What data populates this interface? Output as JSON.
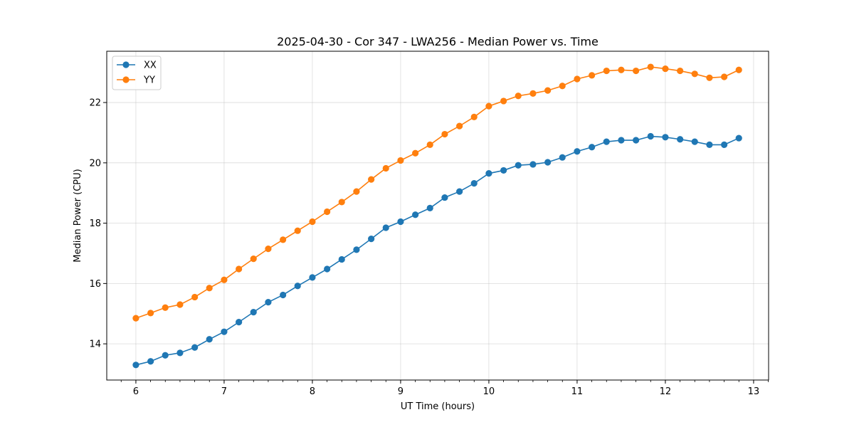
{
  "chart_data": {
    "type": "line",
    "title": "2025-04-30 - Cor 347 - LWA256 - Median Power vs. Time",
    "xlabel": "UT Time (hours)",
    "ylabel": "Median Power (CPU)",
    "xlim": [
      5.67,
      13.17
    ],
    "ylim": [
      12.8,
      23.7
    ],
    "xticks": [
      6,
      7,
      8,
      9,
      10,
      11,
      12,
      13
    ],
    "yticks": [
      14,
      16,
      18,
      20,
      22
    ],
    "grid": true,
    "legend_position": "top-left",
    "x": [
      6.0,
      6.167,
      6.333,
      6.5,
      6.667,
      6.833,
      7.0,
      7.167,
      7.333,
      7.5,
      7.667,
      7.833,
      8.0,
      8.167,
      8.333,
      8.5,
      8.667,
      8.833,
      9.0,
      9.167,
      9.333,
      9.5,
      9.667,
      9.833,
      10.0,
      10.167,
      10.333,
      10.5,
      10.667,
      10.833,
      11.0,
      11.167,
      11.333,
      11.5,
      11.667,
      11.833,
      12.0,
      12.167,
      12.333,
      12.5,
      12.667,
      12.833
    ],
    "series": [
      {
        "name": "XX",
        "color": "#1f77b4",
        "values": [
          13.3,
          13.42,
          13.62,
          13.7,
          13.88,
          14.15,
          14.4,
          14.72,
          15.05,
          15.38,
          15.62,
          15.92,
          16.2,
          16.48,
          16.8,
          17.12,
          17.48,
          17.85,
          18.05,
          18.28,
          18.5,
          18.85,
          19.05,
          19.32,
          19.65,
          19.75,
          19.92,
          19.95,
          20.02,
          20.18,
          20.38,
          20.52,
          20.7,
          20.75,
          20.75,
          20.88,
          20.85,
          20.78,
          20.7,
          20.6,
          20.6,
          20.82
        ]
      },
      {
        "name": "YY",
        "color": "#ff7f0e",
        "values": [
          14.85,
          15.02,
          15.2,
          15.3,
          15.55,
          15.85,
          16.12,
          16.48,
          16.82,
          17.15,
          17.45,
          17.75,
          18.05,
          18.38,
          18.7,
          19.05,
          19.45,
          19.82,
          20.08,
          20.32,
          20.6,
          20.95,
          21.22,
          21.52,
          21.88,
          22.05,
          22.22,
          22.3,
          22.4,
          22.55,
          22.78,
          22.9,
          23.05,
          23.08,
          23.05,
          23.18,
          23.12,
          23.05,
          22.95,
          22.82,
          22.85,
          23.08
        ]
      }
    ]
  }
}
